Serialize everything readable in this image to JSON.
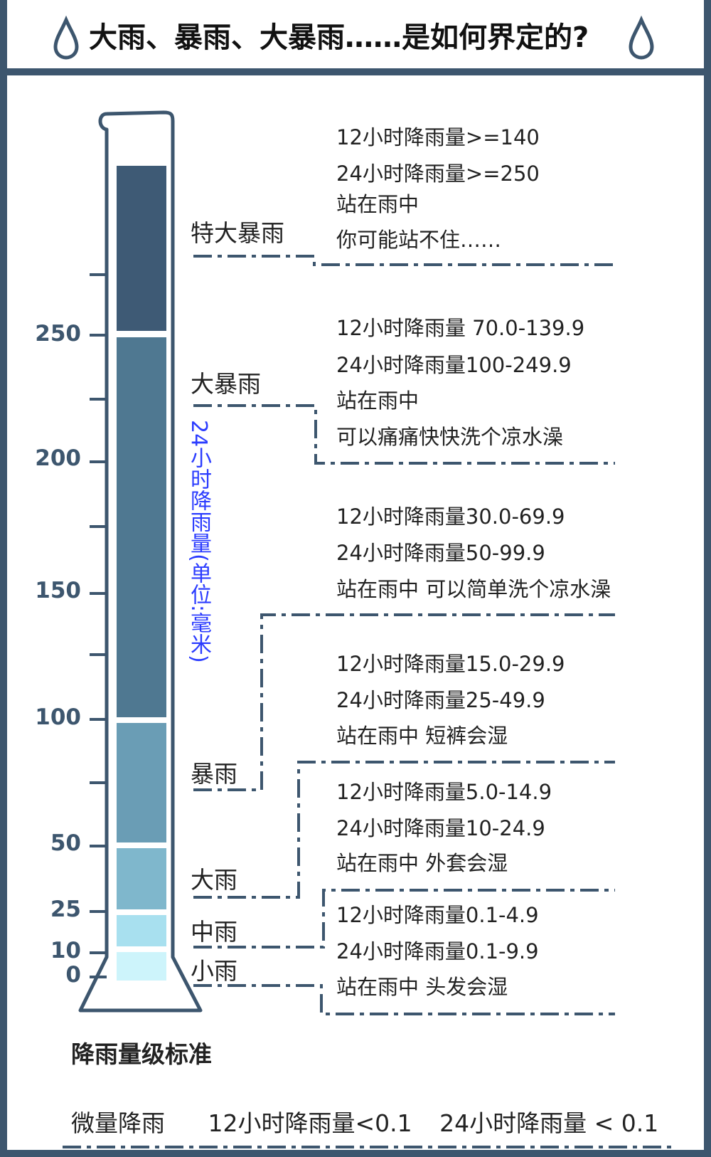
{
  "title": "大雨、暴雨、大暴雨……是如何界定的?",
  "axis_title": "24小时降雨量(单位:毫米)",
  "axis_ticks": [
    "250",
    "200",
    "150",
    "100",
    "50",
    "25",
    "10",
    "0"
  ],
  "footer_title": "降雨量级标准",
  "trace": {
    "label": "微量降雨",
    "h12": "12小时降雨量<0.1",
    "h24": "24小时降雨量 < 0.1"
  },
  "levels": [
    {
      "name": "特大暴雨",
      "lines": [
        "12小时降雨量>=140",
        "24小时降雨量>=250",
        "站在雨中",
        "你可能站不住……"
      ]
    },
    {
      "name": "大暴雨",
      "lines": [
        "12小时降雨量 70.0-139.9",
        "24小时降雨量100-249.9",
        "站在雨中",
        "可以痛痛快快洗个凉水澡"
      ]
    },
    {
      "name": "暴雨",
      "lines": [
        "12小时降雨量30.0-69.9",
        "24小时降雨量50-99.9",
        "站在雨中 可以简单洗个凉水澡"
      ]
    },
    {
      "name": "大雨",
      "lines": [
        "12小时降雨量15.0-29.9",
        "24小时降雨量25-49.9",
        "站在雨中 短裤会湿"
      ]
    },
    {
      "name": "中雨",
      "lines": [
        "12小时降雨量5.0-14.9",
        "24小时降雨量10-24.9",
        "站在雨中 外套会湿"
      ]
    },
    {
      "name": "小雨",
      "lines": [
        "12小时降雨量0.1-4.9",
        "24小时降雨量0.1-9.9",
        "站在雨中 头发会湿"
      ]
    }
  ],
  "colors": {
    "frame": "#3d566e",
    "axis_title": "#2b3cff",
    "segments": [
      "#3e5a75",
      "#4f7891",
      "#6a9db5",
      "#7fb7cc",
      "#a8e0ef",
      "#cdf4fb"
    ]
  }
}
